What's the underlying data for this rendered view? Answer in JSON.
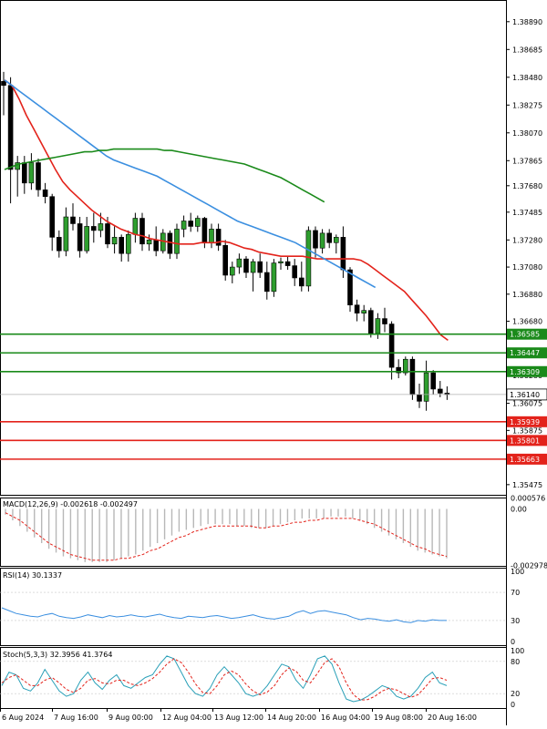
{
  "chart_data": [
    {
      "type": "candlestick",
      "panel": "price",
      "title": "",
      "y_ticks": [
        "1.38890",
        "1.38685",
        "1.38480",
        "1.38275",
        "1.38070",
        "1.37865",
        "1.37680",
        "1.37485",
        "1.37280",
        "1.37080",
        "1.36880",
        "1.36680",
        "1.36280",
        "1.36075",
        "1.35875",
        "1.35475"
      ],
      "ylim": [
        1.354,
        1.3905
      ],
      "x_tick_labels": [
        "6 Aug 2024",
        "7 Aug 16:00",
        "9 Aug 00:00",
        "12 Aug 04:00",
        "13 Aug 12:00",
        "14 Aug 20:00",
        "16 Aug 04:00",
        "19 Aug 08:00",
        "20 Aug 16:00"
      ],
      "current_price": "1.36140",
      "candles": [
        {
          "o": 1.3845,
          "h": 1.3852,
          "l": 1.382,
          "c": 1.3842
        },
        {
          "o": 1.3842,
          "h": 1.3848,
          "l": 1.3755,
          "c": 1.378
        },
        {
          "o": 1.378,
          "h": 1.379,
          "l": 1.376,
          "c": 1.3785
        },
        {
          "o": 1.3785,
          "h": 1.379,
          "l": 1.3762,
          "c": 1.377
        },
        {
          "o": 1.377,
          "h": 1.3792,
          "l": 1.3765,
          "c": 1.3785
        },
        {
          "o": 1.3785,
          "h": 1.3788,
          "l": 1.376,
          "c": 1.3765
        },
        {
          "o": 1.3765,
          "h": 1.377,
          "l": 1.3755,
          "c": 1.376
        },
        {
          "o": 1.376,
          "h": 1.3762,
          "l": 1.372,
          "c": 1.373
        },
        {
          "o": 1.373,
          "h": 1.3735,
          "l": 1.3715,
          "c": 1.372
        },
        {
          "o": 1.372,
          "h": 1.3752,
          "l": 1.3716,
          "c": 1.3745
        },
        {
          "o": 1.3745,
          "h": 1.3755,
          "l": 1.3735,
          "c": 1.374
        },
        {
          "o": 1.374,
          "h": 1.3745,
          "l": 1.3715,
          "c": 1.372
        },
        {
          "o": 1.372,
          "h": 1.3745,
          "l": 1.3718,
          "c": 1.3738
        },
        {
          "o": 1.3738,
          "h": 1.3748,
          "l": 1.3726,
          "c": 1.3735
        },
        {
          "o": 1.3735,
          "h": 1.3748,
          "l": 1.373,
          "c": 1.374
        },
        {
          "o": 1.374,
          "h": 1.3745,
          "l": 1.3722,
          "c": 1.3725
        },
        {
          "o": 1.3725,
          "h": 1.3738,
          "l": 1.3718,
          "c": 1.373
        },
        {
          "o": 1.373,
          "h": 1.3732,
          "l": 1.3712,
          "c": 1.3718
        },
        {
          "o": 1.3718,
          "h": 1.3735,
          "l": 1.3712,
          "c": 1.3732
        },
        {
          "o": 1.3732,
          "h": 1.3748,
          "l": 1.3726,
          "c": 1.3744
        },
        {
          "o": 1.3744,
          "h": 1.3748,
          "l": 1.372,
          "c": 1.3725
        },
        {
          "o": 1.3725,
          "h": 1.3732,
          "l": 1.372,
          "c": 1.3728
        },
        {
          "o": 1.3728,
          "h": 1.3738,
          "l": 1.3716,
          "c": 1.372
        },
        {
          "o": 1.372,
          "h": 1.3736,
          "l": 1.3718,
          "c": 1.3733
        },
        {
          "o": 1.3733,
          "h": 1.3735,
          "l": 1.3714,
          "c": 1.3718
        },
        {
          "o": 1.3718,
          "h": 1.374,
          "l": 1.3714,
          "c": 1.3736
        },
        {
          "o": 1.3736,
          "h": 1.3746,
          "l": 1.373,
          "c": 1.3742
        },
        {
          "o": 1.3742,
          "h": 1.3748,
          "l": 1.3734,
          "c": 1.3738
        },
        {
          "o": 1.3738,
          "h": 1.3746,
          "l": 1.3734,
          "c": 1.3744
        },
        {
          "o": 1.3744,
          "h": 1.3745,
          "l": 1.3722,
          "c": 1.3726
        },
        {
          "o": 1.3726,
          "h": 1.374,
          "l": 1.3722,
          "c": 1.3736
        },
        {
          "o": 1.3736,
          "h": 1.374,
          "l": 1.372,
          "c": 1.3724
        },
        {
          "o": 1.3724,
          "h": 1.3728,
          "l": 1.3698,
          "c": 1.3702
        },
        {
          "o": 1.3702,
          "h": 1.3712,
          "l": 1.3696,
          "c": 1.3708
        },
        {
          "o": 1.3708,
          "h": 1.3718,
          "l": 1.3703,
          "c": 1.3714
        },
        {
          "o": 1.3714,
          "h": 1.3716,
          "l": 1.37,
          "c": 1.3704
        },
        {
          "o": 1.3704,
          "h": 1.3714,
          "l": 1.369,
          "c": 1.3712
        },
        {
          "o": 1.3712,
          "h": 1.3718,
          "l": 1.37,
          "c": 1.3704
        },
        {
          "o": 1.3704,
          "h": 1.3712,
          "l": 1.3684,
          "c": 1.369
        },
        {
          "o": 1.369,
          "h": 1.3714,
          "l": 1.3686,
          "c": 1.3711
        },
        {
          "o": 1.3711,
          "h": 1.3715,
          "l": 1.3706,
          "c": 1.3712
        },
        {
          "o": 1.3712,
          "h": 1.3716,
          "l": 1.3706,
          "c": 1.3709
        },
        {
          "o": 1.3709,
          "h": 1.3714,
          "l": 1.3694,
          "c": 1.37
        },
        {
          "o": 1.37,
          "h": 1.3712,
          "l": 1.369,
          "c": 1.3694
        },
        {
          "o": 1.3694,
          "h": 1.3738,
          "l": 1.369,
          "c": 1.3735
        },
        {
          "o": 1.3735,
          "h": 1.3738,
          "l": 1.3715,
          "c": 1.3722
        },
        {
          "o": 1.3722,
          "h": 1.3736,
          "l": 1.3718,
          "c": 1.3733
        },
        {
          "o": 1.3733,
          "h": 1.3736,
          "l": 1.3722,
          "c": 1.3726
        },
        {
          "o": 1.3726,
          "h": 1.3732,
          "l": 1.3718,
          "c": 1.373
        },
        {
          "o": 1.373,
          "h": 1.3738,
          "l": 1.37,
          "c": 1.3706
        },
        {
          "o": 1.3706,
          "h": 1.3708,
          "l": 1.3675,
          "c": 1.368
        },
        {
          "o": 1.368,
          "h": 1.3684,
          "l": 1.3668,
          "c": 1.3674
        },
        {
          "o": 1.3674,
          "h": 1.368,
          "l": 1.3668,
          "c": 1.3676
        },
        {
          "o": 1.3676,
          "h": 1.3678,
          "l": 1.3656,
          "c": 1.3659
        },
        {
          "o": 1.3659,
          "h": 1.3674,
          "l": 1.3655,
          "c": 1.367
        },
        {
          "o": 1.367,
          "h": 1.3678,
          "l": 1.366,
          "c": 1.3666
        },
        {
          "o": 1.3666,
          "h": 1.3668,
          "l": 1.3625,
          "c": 1.3634
        },
        {
          "o": 1.3634,
          "h": 1.364,
          "l": 1.3626,
          "c": 1.363
        },
        {
          "o": 1.363,
          "h": 1.3642,
          "l": 1.3628,
          "c": 1.364
        },
        {
          "o": 1.364,
          "h": 1.3642,
          "l": 1.361,
          "c": 1.3614
        },
        {
          "o": 1.3614,
          "h": 1.3622,
          "l": 1.3604,
          "c": 1.3609
        },
        {
          "o": 1.3609,
          "h": 1.3639,
          "l": 1.3602,
          "c": 1.363
        },
        {
          "o": 1.363,
          "h": 1.3632,
          "l": 1.3614,
          "c": 1.3618
        },
        {
          "o": 1.3618,
          "h": 1.3624,
          "l": 1.3612,
          "c": 1.3615
        },
        {
          "o": 1.3615,
          "h": 1.362,
          "l": 1.361,
          "c": 1.3614
        }
      ],
      "series": [
        {
          "color": "#e3231b",
          "values": [
            1.3846,
            1.3842,
            1.3832,
            1.382,
            1.381,
            1.38,
            1.379,
            1.378,
            1.3771,
            1.3765,
            1.376,
            1.3755,
            1.375,
            1.3746,
            1.3742,
            1.3739,
            1.3736,
            1.3734,
            1.3732,
            1.3731,
            1.3729,
            1.3728,
            1.3727,
            1.3726,
            1.3725,
            1.3725,
            1.3725,
            1.3726,
            1.3726,
            1.3726,
            1.3727,
            1.3726,
            1.3724,
            1.3722,
            1.3721,
            1.3719,
            1.3718,
            1.3717,
            1.3716,
            1.3716,
            1.3716,
            1.3716,
            1.3715,
            1.3714,
            1.3714,
            1.3714,
            1.3714,
            1.3714,
            1.3714,
            1.3713,
            1.371,
            1.3706,
            1.3702,
            1.3698,
            1.3694,
            1.369,
            1.3684,
            1.3678,
            1.3672,
            1.3665,
            1.3658,
            1.3654
          ]
        },
        {
          "color": "#3b8fe0",
          "values": [
            1.3846,
            1.3842,
            1.3838,
            1.3834,
            1.383,
            1.3826,
            1.3822,
            1.3818,
            1.3814,
            1.381,
            1.3806,
            1.3802,
            1.3798,
            1.3794,
            1.379,
            1.3787,
            1.3785,
            1.3783,
            1.3781,
            1.3779,
            1.3777,
            1.3775,
            1.3772,
            1.3769,
            1.3766,
            1.3763,
            1.376,
            1.3757,
            1.3754,
            1.3751,
            1.3748,
            1.3745,
            1.3742,
            1.374,
            1.3738,
            1.3736,
            1.3734,
            1.3732,
            1.373,
            1.3728,
            1.3726,
            1.3723,
            1.372,
            1.3717,
            1.3714,
            1.3711,
            1.3708,
            1.3705,
            1.3702,
            1.3699,
            1.3696,
            1.3693
          ]
        },
        {
          "color": "#1a8a1a",
          "values": [
            1.378,
            1.3782,
            1.3784,
            1.3785,
            1.3786,
            1.3787,
            1.3788,
            1.3789,
            1.379,
            1.3791,
            1.3792,
            1.3793,
            1.3793,
            1.3794,
            1.3794,
            1.3795,
            1.3795,
            1.3795,
            1.3795,
            1.3795,
            1.3795,
            1.3795,
            1.3794,
            1.3794,
            1.3793,
            1.3792,
            1.3791,
            1.379,
            1.3789,
            1.3788,
            1.3787,
            1.3786,
            1.3785,
            1.3784,
            1.3782,
            1.378,
            1.3778,
            1.3776,
            1.3774,
            1.3771,
            1.3768,
            1.3765,
            1.3762,
            1.3759,
            1.3756
          ]
        }
      ],
      "levels": [
        {
          "price": 1.36585,
          "label": "1.36585",
          "color": "#1a8a1a"
        },
        {
          "price": 1.36447,
          "label": "1.36447",
          "color": "#1a8a1a"
        },
        {
          "price": 1.36309,
          "label": "1.36309",
          "color": "#1a8a1a"
        },
        {
          "price": 1.35939,
          "label": "1.35939",
          "color": "#e3231b"
        },
        {
          "price": 1.35801,
          "label": "1.35801",
          "color": "#e3231b"
        },
        {
          "price": 1.35663,
          "label": "1.35663",
          "color": "#e3231b"
        }
      ]
    },
    {
      "type": "bar",
      "panel": "macd",
      "title": "MACD(12,26,9) -0.002618 -0.002497",
      "y_ticks": [
        "0.000576",
        "0.00",
        "-0.002978"
      ],
      "ylim": [
        -0.003,
        0.0006
      ],
      "values": [
        -0.0003,
        -0.0006,
        -0.0009,
        -0.0012,
        -0.0015,
        -0.0018,
        -0.0021,
        -0.0023,
        -0.0025,
        -0.0026,
        -0.0027,
        -0.0028,
        -0.0028,
        -0.0028,
        -0.0028,
        -0.0027,
        -0.0026,
        -0.0025,
        -0.0024,
        -0.0022,
        -0.002,
        -0.0018,
        -0.0016,
        -0.0014,
        -0.0012,
        -0.0011,
        -0.001,
        -0.0009,
        -0.0008,
        -0.0008,
        -0.0008,
        -0.0008,
        -0.0009,
        -0.0009,
        -0.001,
        -0.001,
        -0.001,
        -0.0009,
        -0.0008,
        -0.0007,
        -0.0006,
        -0.0005,
        -0.0005,
        -0.0005,
        -0.0005,
        -0.0004,
        -0.0004,
        -0.0004,
        -0.0005,
        -0.0006,
        -0.0008,
        -0.001,
        -0.0012,
        -0.0014,
        -0.0016,
        -0.0018,
        -0.002,
        -0.0022,
        -0.0023,
        -0.0024,
        -0.0025,
        -0.0026
      ],
      "signal": [
        -0.0002,
        -0.0004,
        -0.0006,
        -0.0009,
        -0.0012,
        -0.0015,
        -0.0018,
        -0.002,
        -0.0022,
        -0.0024,
        -0.0025,
        -0.0026,
        -0.0027,
        -0.0027,
        -0.0027,
        -0.0027,
        -0.0026,
        -0.0026,
        -0.0025,
        -0.0024,
        -0.0022,
        -0.0021,
        -0.0019,
        -0.0017,
        -0.0015,
        -0.0014,
        -0.0012,
        -0.0011,
        -0.001,
        -0.0009,
        -0.0009,
        -0.0009,
        -0.0009,
        -0.0009,
        -0.0009,
        -0.001,
        -0.001,
        -0.0009,
        -0.0009,
        -0.0008,
        -0.0007,
        -0.0007,
        -0.0006,
        -0.0006,
        -0.0005,
        -0.0005,
        -0.0005,
        -0.0005,
        -0.0005,
        -0.0006,
        -0.0007,
        -0.0008,
        -0.001,
        -0.0012,
        -0.0014,
        -0.0016,
        -0.0018,
        -0.002,
        -0.0021,
        -0.0023,
        -0.0024,
        -0.0025
      ]
    },
    {
      "type": "line",
      "panel": "rsi",
      "title": "RSI(14) 30.1337",
      "y_ticks": [
        "100",
        "70",
        "30",
        "0"
      ],
      "ylim": [
        0,
        100
      ],
      "values": [
        48,
        44,
        40,
        38,
        36,
        35,
        38,
        40,
        36,
        34,
        33,
        35,
        38,
        36,
        34,
        37,
        35,
        36,
        38,
        36,
        35,
        37,
        39,
        36,
        34,
        33,
        36,
        35,
        34,
        36,
        37,
        35,
        33,
        34,
        36,
        38,
        35,
        33,
        32,
        34,
        36,
        41,
        44,
        40,
        43,
        44,
        42,
        40,
        38,
        34,
        31,
        33,
        32,
        30,
        29,
        31,
        28,
        27,
        30,
        29,
        31,
        30,
        30
      ]
    },
    {
      "type": "line",
      "panel": "stoch",
      "title": "Stoch(5,3,3) 32.3956 41.3764",
      "y_ticks": [
        "100",
        "80",
        "20",
        "0"
      ],
      "ylim": [
        0,
        100
      ],
      "series": [
        {
          "color": "#2aa0b8",
          "values": [
            35,
            60,
            55,
            30,
            25,
            40,
            65,
            45,
            25,
            15,
            20,
            45,
            60,
            40,
            28,
            45,
            55,
            35,
            30,
            40,
            50,
            55,
            75,
            90,
            85,
            60,
            35,
            20,
            15,
            30,
            55,
            70,
            55,
            40,
            20,
            15,
            20,
            35,
            55,
            75,
            70,
            45,
            30,
            55,
            85,
            90,
            75,
            40,
            10,
            5,
            8,
            15,
            25,
            35,
            30,
            15,
            10,
            15,
            30,
            50,
            60,
            40,
            35
          ]
        },
        {
          "color": "#e3231b",
          "values": [
            40,
            50,
            55,
            45,
            35,
            35,
            45,
            50,
            40,
            28,
            22,
            30,
            45,
            48,
            40,
            38,
            45,
            45,
            38,
            35,
            40,
            48,
            60,
            75,
            85,
            78,
            60,
            38,
            22,
            20,
            35,
            55,
            62,
            55,
            38,
            25,
            18,
            23,
            35,
            55,
            68,
            62,
            45,
            40,
            58,
            78,
            85,
            70,
            40,
            18,
            8,
            9,
            15,
            25,
            30,
            27,
            20,
            13,
            18,
            32,
            48,
            50,
            45
          ]
        }
      ]
    }
  ]
}
